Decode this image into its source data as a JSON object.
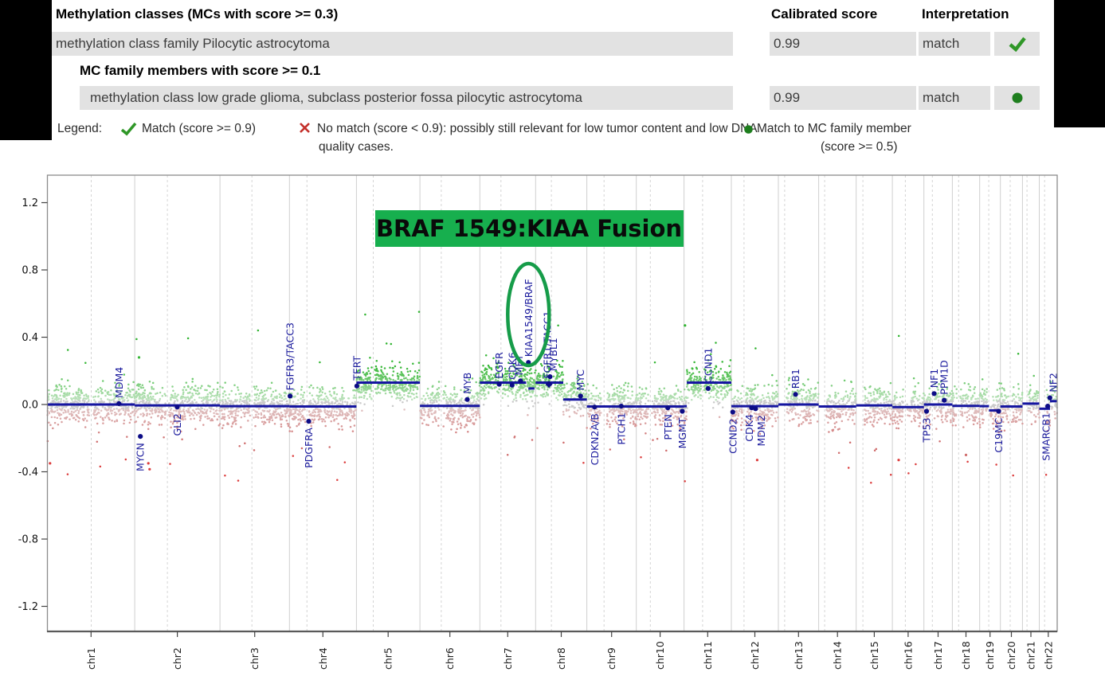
{
  "table": {
    "headers": {
      "classes": "Methylation classes (MCs with score >= 0.3)",
      "score": "Calibrated score",
      "interpretation": "Interpretation"
    },
    "subheader": "MC family members with score >= 0.1",
    "rows": [
      {
        "name": "methylation class family Pilocytic astrocytoma",
        "score": "0.99",
        "interpretation": "match",
        "icon": "check-icon"
      },
      {
        "name": "methylation class low grade glioma, subclass posterior fossa pilocytic astrocytoma",
        "score": "0.99",
        "interpretation": "match",
        "icon": "dot-icon"
      }
    ]
  },
  "legend": {
    "label": "Legend:",
    "match": {
      "text": "Match (score >= 0.9)"
    },
    "nomatch": {
      "line1": "No match (score < 0.9): possibly still relevant for low tumor content and low DNA",
      "line2": "quality cases."
    },
    "family": {
      "line1": "Match to MC family member",
      "line2": "(score >= 0.5)"
    }
  },
  "colors": {
    "check_green": "#2f9727",
    "x_red": "#c4302b",
    "dot_green": "#1e7e1e",
    "row_bg": "#e2e2e2",
    "annotation_green": "#17af4e",
    "ellipse_green": "#169c49",
    "segment_navy": "#1515a0",
    "gene_label_navy": "#1c1c9e"
  },
  "chart_data": {
    "type": "scatter",
    "subtype": "copy-number-genome-plot",
    "title": "",
    "xlabel": "",
    "ylabel": "",
    "ylim": [
      -1.36,
      1.36
    ],
    "yticks": [
      1.2,
      0.8,
      0.4,
      0.0,
      -0.4,
      -0.8,
      -1.2
    ],
    "grid": "chromosome-boundaries-solid, centromeres-dashed",
    "legend_position": "none",
    "points_per_mb": 2.2,
    "noise_sd": 0.055,
    "chromosomes": [
      {
        "name": "chr1",
        "len_mb": 249,
        "cen_mb": 125,
        "cen_gap_mb": 6,
        "acrocentric": false,
        "segments": [
          [
            0,
            1,
            0.0
          ]
        ]
      },
      {
        "name": "chr2",
        "len_mb": 243,
        "cen_mb": 93,
        "cen_gap_mb": 4.5,
        "acrocentric": false,
        "segments": [
          [
            0,
            1,
            -0.005
          ]
        ]
      },
      {
        "name": "chr3",
        "len_mb": 198,
        "cen_mb": 91,
        "cen_gap_mb": 4.5,
        "acrocentric": false,
        "segments": [
          [
            0,
            1,
            -0.01
          ]
        ]
      },
      {
        "name": "chr4",
        "len_mb": 191,
        "cen_mb": 50,
        "cen_gap_mb": 4.5,
        "acrocentric": false,
        "segments": [
          [
            0,
            1,
            -0.012
          ]
        ]
      },
      {
        "name": "chr5",
        "len_mb": 181,
        "cen_mb": 48,
        "cen_gap_mb": 4.5,
        "acrocentric": false,
        "segments": [
          [
            0,
            1,
            0.13
          ]
        ]
      },
      {
        "name": "chr6",
        "len_mb": 171,
        "cen_mb": 61,
        "cen_gap_mb": 4.5,
        "acrocentric": false,
        "segments": [
          [
            0,
            1,
            -0.008
          ]
        ]
      },
      {
        "name": "chr7",
        "len_mb": 159,
        "cen_mb": 60,
        "cen_gap_mb": 4.5,
        "acrocentric": false,
        "segments": [
          [
            0,
            0.83,
            0.13
          ],
          [
            0.87,
            0.98,
            0.095
          ]
        ]
      },
      {
        "name": "chr8",
        "len_mb": 146,
        "cen_mb": 45,
        "cen_gap_mb": 4.5,
        "acrocentric": false,
        "segments": [
          [
            0,
            0.54,
            0.13
          ],
          [
            0.54,
            1,
            0.03
          ]
        ]
      },
      {
        "name": "chr9",
        "len_mb": 141,
        "cen_mb": 49,
        "cen_gap_mb": 8,
        "acrocentric": false,
        "segments": [
          [
            0,
            1,
            -0.012
          ]
        ]
      },
      {
        "name": "chr10",
        "len_mb": 136,
        "cen_mb": 40,
        "cen_gap_mb": 4.5,
        "acrocentric": false,
        "segments": [
          [
            0,
            1,
            -0.012
          ]
        ]
      },
      {
        "name": "chr11",
        "len_mb": 135,
        "cen_mb": 53,
        "cen_gap_mb": 4.5,
        "acrocentric": false,
        "segments": [
          [
            0,
            0.06,
            -0.01
          ],
          [
            0.06,
            1,
            0.13
          ]
        ]
      },
      {
        "name": "chr12",
        "len_mb": 134,
        "cen_mb": 36,
        "cen_gap_mb": 4.5,
        "acrocentric": false,
        "segments": [
          [
            0,
            1,
            -0.01
          ]
        ]
      },
      {
        "name": "chr13",
        "len_mb": 115,
        "cen_mb": 18,
        "cen_gap_mb": 4.5,
        "acrocentric": true,
        "segments": [
          [
            0,
            1,
            0.0
          ]
        ]
      },
      {
        "name": "chr14",
        "len_mb": 107,
        "cen_mb": 17,
        "cen_gap_mb": 4.5,
        "acrocentric": true,
        "segments": [
          [
            0,
            1,
            -0.012
          ]
        ]
      },
      {
        "name": "chr15",
        "len_mb": 103,
        "cen_mb": 19,
        "cen_gap_mb": 4.5,
        "acrocentric": true,
        "segments": [
          [
            0,
            1,
            -0.005
          ]
        ]
      },
      {
        "name": "chr16",
        "len_mb": 90,
        "cen_mb": 37,
        "cen_gap_mb": 5,
        "acrocentric": false,
        "segments": [
          [
            0,
            1,
            -0.015
          ]
        ]
      },
      {
        "name": "chr17",
        "len_mb": 81,
        "cen_mb": 24,
        "cen_gap_mb": 4,
        "acrocentric": false,
        "segments": [
          [
            0,
            1,
            0.0
          ]
        ]
      },
      {
        "name": "chr18",
        "len_mb": 78,
        "cen_mb": 18,
        "cen_gap_mb": 4,
        "acrocentric": false,
        "segments": [
          [
            0,
            1,
            -0.008
          ]
        ]
      },
      {
        "name": "chr19",
        "len_mb": 59,
        "cen_mb": 26,
        "cen_gap_mb": 4,
        "acrocentric": false,
        "segments": [
          [
            0,
            0.45,
            -0.01
          ],
          [
            0.45,
            1,
            -0.035
          ]
        ]
      },
      {
        "name": "chr20",
        "len_mb": 63,
        "cen_mb": 28,
        "cen_gap_mb": 4,
        "acrocentric": false,
        "segments": [
          [
            0,
            1,
            -0.012
          ]
        ]
      },
      {
        "name": "chr21",
        "len_mb": 48,
        "cen_mb": 13,
        "cen_gap_mb": 3.5,
        "acrocentric": true,
        "segments": [
          [
            0,
            1,
            0.005
          ]
        ]
      },
      {
        "name": "chr22",
        "len_mb": 51,
        "cen_mb": 15,
        "cen_gap_mb": 3.5,
        "acrocentric": true,
        "segments": [
          [
            0,
            0.6,
            -0.025
          ],
          [
            0.6,
            1,
            0.02
          ]
        ]
      }
    ],
    "genes": [
      {
        "name": "MDM4",
        "chr": 1,
        "mb": 204,
        "value": 0.005,
        "side": "above",
        "marker": "circle",
        "dx": 0
      },
      {
        "name": "MYCN",
        "chr": 2,
        "mb": 16,
        "value": -0.19,
        "side": "below",
        "marker": "circle",
        "dx": 0
      },
      {
        "name": "GLI2",
        "chr": 2,
        "mb": 121,
        "value": -0.015,
        "side": "below",
        "marker": "circle",
        "dx": 0
      },
      {
        "name": "FGFR3/TACC3",
        "chr": 4,
        "mb": 1.8,
        "value": 0.05,
        "side": "above",
        "marker": "circle",
        "dx": 0
      },
      {
        "name": "PDGFRA",
        "chr": 4,
        "mb": 55,
        "value": -0.1,
        "side": "below",
        "marker": "circle",
        "dx": 0
      },
      {
        "name": "TERT",
        "chr": 5,
        "mb": 1.3,
        "value": 0.11,
        "side": "above",
        "marker": "circle",
        "dx": 0
      },
      {
        "name": "MYB",
        "chr": 6,
        "mb": 135,
        "value": 0.03,
        "side": "above",
        "marker": "circle",
        "dx": 0
      },
      {
        "name": "EGFR",
        "chr": 7,
        "mb": 55,
        "value": 0.12,
        "side": "above",
        "marker": "circle",
        "dx": 0
      },
      {
        "name": "CDK6",
        "chr": 7,
        "mb": 92,
        "value": 0.115,
        "side": "above",
        "marker": "circle",
        "dx": 0
      },
      {
        "name": "MET",
        "chr": 7,
        "mb": 116,
        "value": 0.14,
        "side": "above",
        "marker": "circle",
        "dx": -2
      },
      {
        "name": "KIAA1549/BRAF",
        "chr": 7,
        "mb": 138.5,
        "value": 0.25,
        "side": "above",
        "marker": "circle",
        "dx": 0
      },
      {
        "name": "FGFR1/TACC1",
        "chr": 8,
        "mb": 38,
        "value": 0.12,
        "side": "above",
        "marker": "diamond",
        "dx": -2
      },
      {
        "name": "MYBL1",
        "chr": 8,
        "mb": 41,
        "value": 0.165,
        "side": "above",
        "marker": "circle",
        "dx": 4
      },
      {
        "name": "MYC",
        "chr": 8,
        "mb": 128,
        "value": 0.05,
        "side": "above",
        "marker": "circle",
        "dx": 0
      },
      {
        "name": "CDKN2A/B",
        "chr": 9,
        "mb": 22,
        "value": -0.015,
        "side": "below",
        "marker": "circle",
        "dx": 0
      },
      {
        "name": "PTCH1",
        "chr": 9,
        "mb": 98,
        "value": -0.01,
        "side": "below",
        "marker": "circle",
        "dx": 0
      },
      {
        "name": "PTEN",
        "chr": 10,
        "mb": 90,
        "value": -0.02,
        "side": "below",
        "marker": "circle",
        "dx": 0
      },
      {
        "name": "MGMT",
        "chr": 10,
        "mb": 131,
        "value": -0.04,
        "side": "below",
        "marker": "circle",
        "dx": 0
      },
      {
        "name": "CCND1",
        "chr": 11,
        "mb": 69,
        "value": 0.095,
        "side": "above",
        "marker": "circle",
        "dx": 0
      },
      {
        "name": "CCND2",
        "chr": 12,
        "mb": 4,
        "value": -0.045,
        "side": "below",
        "marker": "circle",
        "dx": 0
      },
      {
        "name": "CDK4",
        "chr": 12,
        "mb": 58,
        "value": -0.02,
        "side": "below",
        "marker": "circle",
        "dx": -3
      },
      {
        "name": "MDM2",
        "chr": 12,
        "mb": 69,
        "value": -0.025,
        "side": "below",
        "marker": "circle",
        "dx": 7
      },
      {
        "name": "RB1",
        "chr": 13,
        "mb": 49,
        "value": 0.06,
        "side": "above",
        "marker": "circle",
        "dx": 0
      },
      {
        "name": "TP53",
        "chr": 17,
        "mb": 7.5,
        "value": -0.04,
        "side": "below",
        "marker": "circle",
        "dx": 0
      },
      {
        "name": "NF1",
        "chr": 17,
        "mb": 29,
        "value": 0.065,
        "side": "above",
        "marker": "circle",
        "dx": 0
      },
      {
        "name": "PPM1D",
        "chr": 17,
        "mb": 58,
        "value": 0.025,
        "side": "above",
        "marker": "circle",
        "dx": 0
      },
      {
        "name": "C19MC",
        "chr": 19,
        "mb": 54,
        "value": -0.04,
        "side": "below",
        "marker": "circle",
        "dx": 0
      },
      {
        "name": "SMARCB1",
        "chr": 22,
        "mb": 24,
        "value": -0.01,
        "side": "below",
        "marker": "circle",
        "dx": -2
      },
      {
        "name": "NF2",
        "chr": 22,
        "mb": 30,
        "value": 0.04,
        "side": "above",
        "marker": "circle",
        "dx": 4
      }
    ],
    "notable_outliers": [
      {
        "chr": 1,
        "frac": 0.03,
        "value": -0.35
      },
      {
        "chr": 2,
        "frac": 0.16,
        "value": -0.35
      },
      {
        "chr": 2,
        "frac": 0.175,
        "value": -0.385
      },
      {
        "chr": 2,
        "frac": 0.05,
        "value": 0.28
      },
      {
        "chr": 11,
        "frac": 0.02,
        "value": 0.47
      },
      {
        "chr": 12,
        "frac": 0.55,
        "value": -0.33
      },
      {
        "chr": 16,
        "frac": 0.2,
        "value": -0.33
      },
      {
        "chr": 18,
        "frac": 0.5,
        "value": -0.3
      }
    ],
    "annotation": {
      "text": "BRAF 1549:KIAA Fusion",
      "box_color": "#17af4e",
      "highlight_gene": "KIAA1549/BRAF"
    }
  }
}
